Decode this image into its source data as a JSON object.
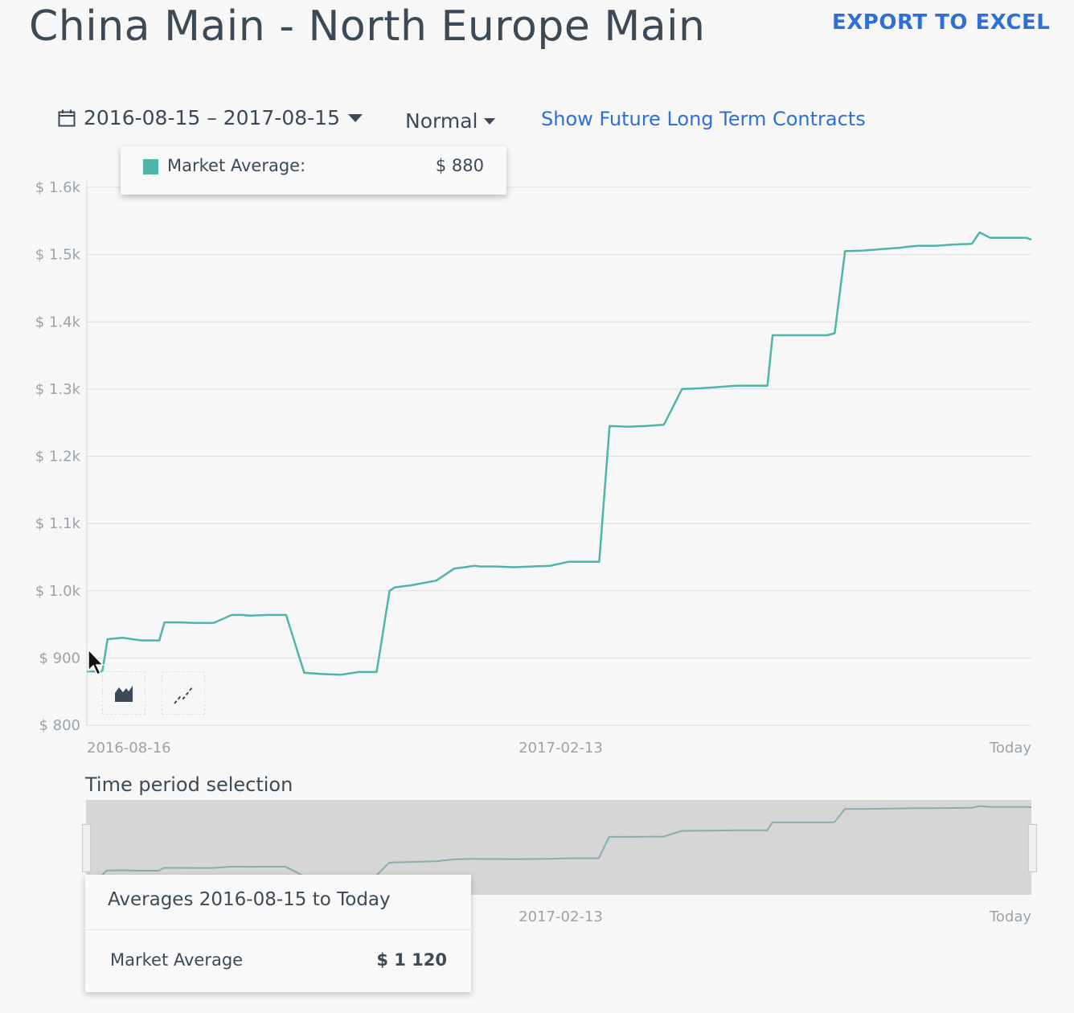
{
  "header": {
    "title": "China Main - North Europe Main",
    "export_label": "EXPORT TO EXCEL"
  },
  "controls": {
    "date_range": "2016-08-15 – 2017-08-15",
    "mode": "Normal",
    "future_link": "Show Future Long Term Contracts"
  },
  "tooltip": {
    "label": "Market Average:",
    "value": "$ 880"
  },
  "chart_buttons": [
    "area-chart-icon",
    "line-chart-icon"
  ],
  "time_period_label": "Time period selection",
  "averages": {
    "header": "Averages 2016-08-15 to Today",
    "row_label": "Market Average",
    "row_value": "$ 1 120"
  },
  "colors": {
    "series": "#4db6a8",
    "link": "#2e6fd8"
  },
  "chart_data": {
    "type": "line",
    "title": "",
    "xlabel": "",
    "ylabel": "",
    "ylim": [
      800,
      1600
    ],
    "y_ticks": [
      800,
      900,
      1000,
      1100,
      1200,
      1300,
      1400,
      1500,
      1600
    ],
    "y_tick_labels": [
      "$ 800",
      "$ 900",
      "$ 1.0k",
      "$ 1.1k",
      "$ 1.2k",
      "$ 1.3k",
      "$ 1.4k",
      "$ 1.5k",
      "$ 1.6k"
    ],
    "x_tick_labels": [
      "2016-08-16",
      "2017-02-13",
      "Today"
    ],
    "navigator_x_tick_labels": [
      "2017-02-13",
      "Today"
    ],
    "grid": true,
    "series": [
      {
        "name": "Market Average",
        "x": [
          "2016-08-15",
          "2016-08-16",
          "2016-08-21",
          "2016-08-23",
          "2016-08-29",
          "2016-09-05",
          "2016-09-12",
          "2016-09-14",
          "2016-09-20",
          "2016-09-26",
          "2016-10-03",
          "2016-10-10",
          "2016-10-14",
          "2016-10-17",
          "2016-10-24",
          "2016-10-31",
          "2016-11-07",
          "2016-11-14",
          "2016-11-21",
          "2016-11-28",
          "2016-12-05",
          "2016-12-10",
          "2016-12-12",
          "2016-12-18",
          "2016-12-21",
          "2016-12-28",
          "2017-01-04",
          "2017-01-12",
          "2017-01-14",
          "2017-01-20",
          "2017-01-27",
          "2017-02-03",
          "2017-02-10",
          "2017-02-17",
          "2017-02-24",
          "2017-03-01",
          "2017-03-05",
          "2017-03-12",
          "2017-03-19",
          "2017-03-26",
          "2017-04-02",
          "2017-04-09",
          "2017-04-16",
          "2017-04-23",
          "2017-04-30",
          "2017-05-05",
          "2017-05-07",
          "2017-05-14",
          "2017-05-21",
          "2017-05-28",
          "2017-05-31",
          "2017-06-04",
          "2017-06-11",
          "2017-06-18",
          "2017-06-25",
          "2017-06-29",
          "2017-07-02",
          "2017-07-09",
          "2017-07-16",
          "2017-07-23",
          "2017-07-26",
          "2017-07-30",
          "2017-08-06",
          "2017-08-09",
          "2017-08-10",
          "2017-08-13",
          "2017-08-15"
        ],
        "values": [
          880,
          880,
          880,
          928,
          930,
          926,
          926,
          953,
          953,
          952,
          952,
          964,
          964,
          963,
          964,
          964,
          878,
          876,
          875,
          879,
          879,
          1000,
          1005,
          1008,
          1010,
          1015,
          1033,
          1037,
          1036,
          1036,
          1035,
          1036,
          1037,
          1043,
          1043,
          1043,
          1245,
          1244,
          1245,
          1247,
          1300,
          1301,
          1303,
          1305,
          1305,
          1305,
          1380,
          1380,
          1380,
          1380,
          1383,
          1505,
          1506,
          1508,
          1510,
          1512,
          1513,
          1513,
          1515,
          1516,
          1533,
          1525,
          1525,
          1525,
          1525,
          1525,
          1522
        ]
      }
    ]
  }
}
